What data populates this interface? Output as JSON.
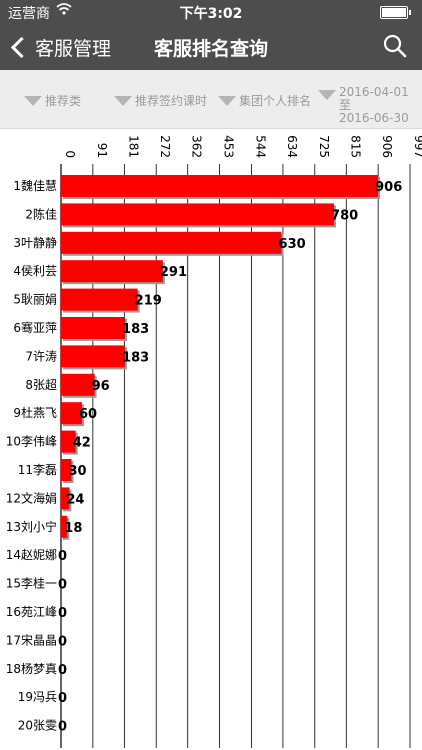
{
  "status_bar": {
    "carrier": "运营商",
    "time": "下午3:02"
  },
  "nav": {
    "back_label": "客服管理",
    "title": "客服排名查询"
  },
  "filters": {
    "type_label": "推荐类",
    "lesson_label": "推荐签约课时",
    "group_label": "集团个人排名",
    "date_start": "2016-04-01 至",
    "date_end": "2016-06-30"
  },
  "colors": {
    "bar": "#ff0000",
    "header": "#4d4d4d",
    "filter_bg": "#ededed"
  },
  "chart_data": {
    "type": "bar",
    "orientation": "horizontal",
    "categories": [
      "1魏佳慧",
      "2陈佳",
      "3叶静静",
      "4侯利芸",
      "5耿丽娟",
      "6骞亚萍",
      "7许涛",
      "8张超",
      "9杜燕飞",
      "10李伟峰",
      "11李磊",
      "12文海娟",
      "13刘小宁",
      "14赵妮娜",
      "15李桂一",
      "16苑江峰",
      "17宋晶晶",
      "18杨梦真",
      "19冯兵",
      "20张雯"
    ],
    "values": [
      906,
      780,
      630,
      291,
      219,
      183,
      183,
      96,
      60,
      42,
      30,
      24,
      18,
      0,
      0,
      0,
      0,
      0,
      0,
      0
    ],
    "x_ticks": [
      "0",
      "91",
      "181",
      "272",
      "362",
      "453",
      "544",
      "634",
      "725",
      "815",
      "906",
      "997"
    ],
    "xlim": [
      0,
      997
    ],
    "grid": true,
    "legend": "none"
  }
}
